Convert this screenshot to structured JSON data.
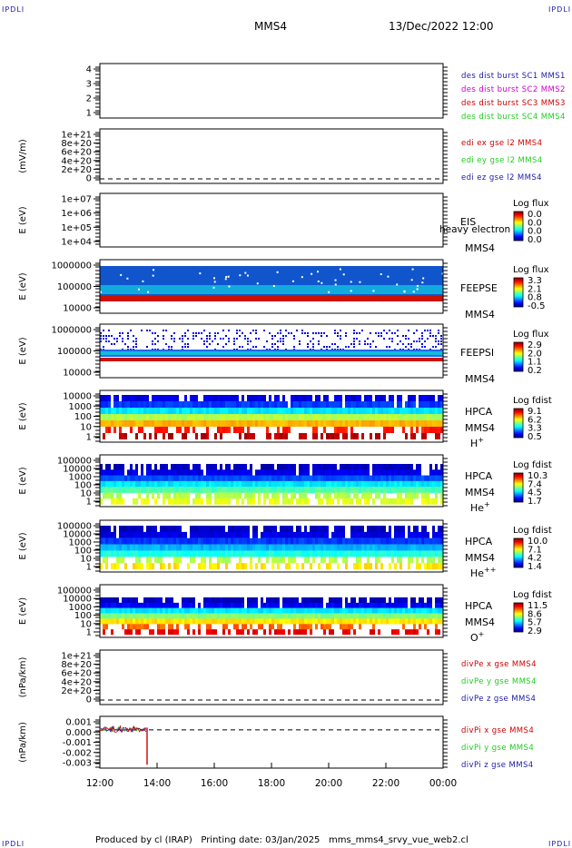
{
  "corner_label": "IPDLI",
  "header": {
    "spacecraft": "MMS4",
    "datetime": "13/Dec/2022 12:00"
  },
  "footer": {
    "producer": "Produced by cl (IRAP)",
    "printing": "Printing date: 03/Jan/2025",
    "file": "mms_mms4_srvy_vue_web2.cl"
  },
  "x_axis": {
    "ticks": [
      "12:00",
      "14:00",
      "16:00",
      "18:00",
      "20:00",
      "22:00",
      "00:00"
    ]
  },
  "colors": {
    "blue": "#1a1aa6",
    "magenta": "#cc00cc",
    "red": "#cc0000",
    "green": "#22cc22"
  },
  "chart_data": [
    {
      "type": "line",
      "id": "des",
      "ylabel": "",
      "yticks": [
        "4",
        "3",
        "2",
        "1"
      ],
      "ylim": [
        0.5,
        4.5
      ],
      "legend": [
        {
          "text": "des dist burst SC1 MMS1",
          "color": "#1a1aa6"
        },
        {
          "text": "des dist burst SC2 MMS2",
          "color": "#cc00cc"
        },
        {
          "text": "des dist burst SC3 MMS3",
          "color": "#cc0000"
        },
        {
          "text": "des dist burst SC4 MMS4",
          "color": "#22cc22"
        }
      ]
    },
    {
      "type": "line",
      "id": "edi",
      "ylabel": "(mV/m)",
      "yticks": [
        "1e+21",
        "8e+20",
        "6e+20",
        "4e+20",
        "2e+20",
        "0"
      ],
      "dashed_zero": true,
      "legend": [
        {
          "text": "edi ex gse l2 MMS4",
          "color": "#cc0000"
        },
        {
          "text": "edi ey gse l2 MMS4",
          "color": "#22cc22"
        },
        {
          "text": "edi ez gse l2 MMS4",
          "color": "#1a1aa6"
        }
      ]
    },
    {
      "type": "heatmap",
      "id": "eis",
      "ylabel": "E (eV)",
      "yticks": [
        "1e+07",
        "1e+06",
        "1e+05",
        "1e+04"
      ],
      "labels": [
        "EIS",
        "MMS4"
      ],
      "overlay": "heavy electron to",
      "colorbar": {
        "title": "Log flux",
        "ticks": [
          "0.0",
          "0.0",
          "0.0",
          "0.0"
        ]
      }
    },
    {
      "type": "heatmap",
      "id": "feepse",
      "ylabel": "E (eV)",
      "yticks": [
        "1000000",
        "100000",
        "10000"
      ],
      "labels": [
        "FEEPSE",
        "MMS4"
      ],
      "colorbar": {
        "title": "Log flux",
        "ticks": [
          "3.3",
          "2.1",
          "0.8",
          "-0.5"
        ]
      }
    },
    {
      "type": "heatmap",
      "id": "feepsi",
      "ylabel": "E (eV)",
      "yticks": [
        "1000000",
        "100000",
        "10000"
      ],
      "labels": [
        "FEEPSI",
        "MMS4"
      ],
      "colorbar": {
        "title": "Log flux",
        "ticks": [
          "2.9",
          "2.0",
          "1.1",
          "0.2"
        ]
      }
    },
    {
      "type": "heatmap",
      "id": "hpca_h",
      "ylabel": "E (eV)",
      "yticks": [
        "10000",
        "1000",
        "100",
        "10",
        "1"
      ],
      "labels": [
        "HPCA",
        "MMS4"
      ],
      "species": "H",
      "sup": "+",
      "colorbar": {
        "title": "Log fdist",
        "ticks": [
          "9.1",
          "6.2",
          "3.3",
          "0.5"
        ]
      }
    },
    {
      "type": "heatmap",
      "id": "hpca_he",
      "ylabel": "E (eV)",
      "yticks": [
        "100000",
        "10000",
        "1000",
        "100",
        "10",
        "1"
      ],
      "labels": [
        "HPCA",
        "MMS4"
      ],
      "species": "He",
      "sup": "+",
      "colorbar": {
        "title": "Log fdist",
        "ticks": [
          "10.3",
          "7.4",
          "4.5",
          "1.7"
        ]
      }
    },
    {
      "type": "heatmap",
      "id": "hpca_hepp",
      "ylabel": "E (eV)",
      "yticks": [
        "100000",
        "10000",
        "1000",
        "100",
        "10",
        "1"
      ],
      "labels": [
        "HPCA",
        "MMS4"
      ],
      "species": "He",
      "sup": "++",
      "colorbar": {
        "title": "Log fdist",
        "ticks": [
          "10.0",
          "7.1",
          "4.2",
          "1.4"
        ]
      }
    },
    {
      "type": "heatmap",
      "id": "hpca_o",
      "ylabel": "E (eV)",
      "yticks": [
        "100000",
        "10000",
        "1000",
        "100",
        "10",
        "1"
      ],
      "labels": [
        "HPCA",
        "MMS4"
      ],
      "species": "O",
      "sup": "+",
      "colorbar": {
        "title": "Log fdist",
        "ticks": [
          "11.5",
          "8.6",
          "5.7",
          "2.9"
        ]
      }
    },
    {
      "type": "line",
      "id": "divpe",
      "ylabel": "(nPa/km)",
      "yticks": [
        "1e+21",
        "8e+20",
        "6e+20",
        "4e+20",
        "2e+20",
        "0"
      ],
      "dashed_zero": true,
      "legend": [
        {
          "text": "divPe x gse MMS4",
          "color": "#cc0000"
        },
        {
          "text": "divPe y gse MMS4",
          "color": "#22cc22"
        },
        {
          "text": "divPe z gse MMS4",
          "color": "#1a1aa6"
        }
      ]
    },
    {
      "type": "line",
      "id": "divpi",
      "ylabel": "(nPa/km)",
      "yticks": [
        "0.001",
        "0.000",
        "-0.001",
        "-0.002",
        "-0.003"
      ],
      "ylim": [
        -0.0034,
        0.0012
      ],
      "dashed_zero": true,
      "data_end_hour": 13.65,
      "legend": [
        {
          "text": "divPi x gse MMS4",
          "color": "#cc0000"
        },
        {
          "text": "divPi y gse MMS4",
          "color": "#22cc22"
        },
        {
          "text": "divPi z gse MMS4",
          "color": "#1a1aa6"
        }
      ]
    }
  ]
}
